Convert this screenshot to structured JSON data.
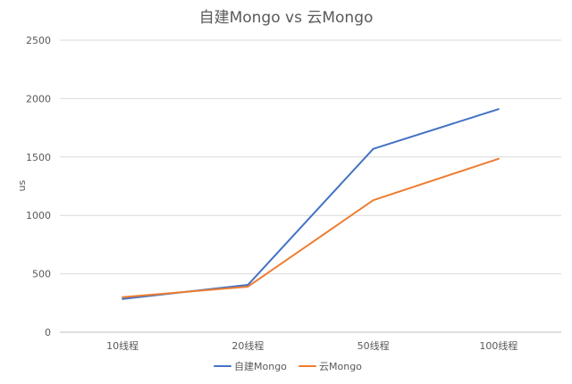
{
  "chart_data": {
    "type": "line",
    "title": "自建Mongo vs 云Mongo",
    "xlabel": "",
    "ylabel": "us",
    "categories": [
      "10线程",
      "20线程",
      "50线程",
      "100线程"
    ],
    "ylim": [
      0,
      2500
    ],
    "yticks": [
      0,
      500,
      1000,
      1500,
      2000,
      2500
    ],
    "grid": true,
    "legend_position": "bottom",
    "series": [
      {
        "name": "自建Mongo",
        "color": "#4472C4",
        "values": [
          285,
          405,
          1570,
          1910
        ]
      },
      {
        "name": "云Mongo",
        "color": "#ED7D31",
        "values": [
          300,
          390,
          1130,
          1485
        ]
      }
    ]
  }
}
